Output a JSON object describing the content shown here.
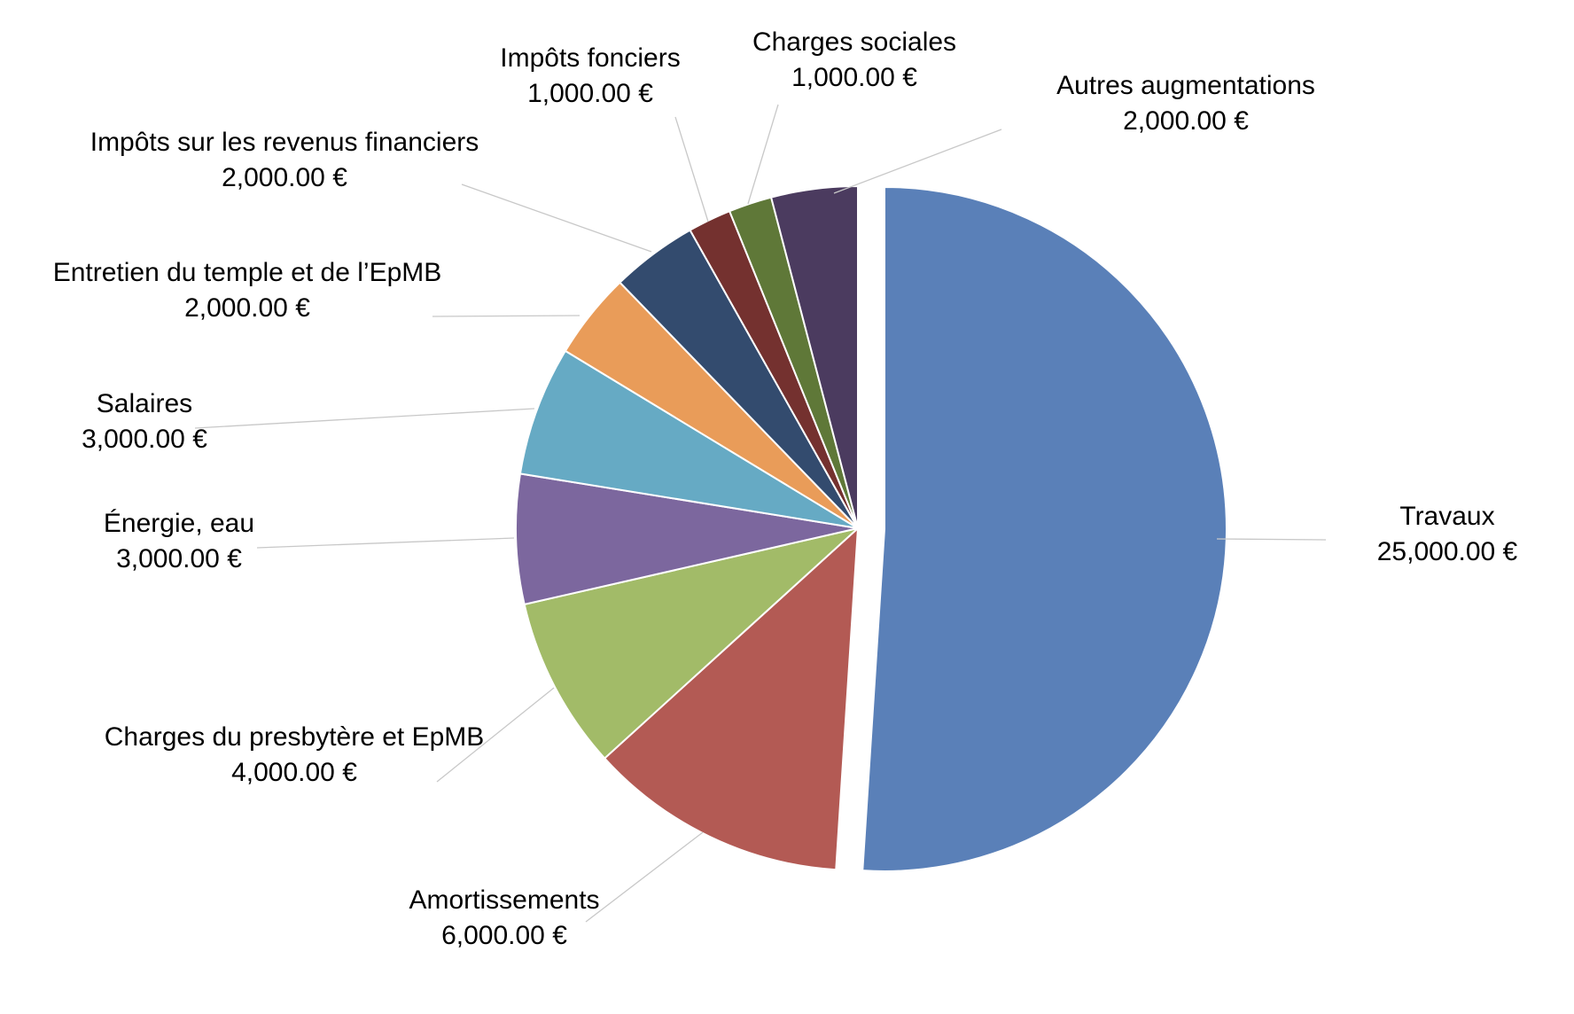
{
  "chart_data": {
    "type": "pie",
    "title": "",
    "labels_shown": "category name and value, outside with leader lines",
    "exploded_slice": "Travaux",
    "start_angle_deg": 0,
    "direction": "clockwise",
    "slices": [
      {
        "name": "Travaux",
        "value": 25000,
        "label": "25,000.00 €",
        "color": "#5a80b8"
      },
      {
        "name": "Amortissements",
        "value": 6000,
        "label": "6,000.00 €",
        "color": "#b35a54"
      },
      {
        "name": "Charges du presbytère et EpMB",
        "value": 4000,
        "label": "4,000.00 €",
        "color": "#a2bb68"
      },
      {
        "name": "Énergie, eau",
        "value": 3000,
        "label": "3,000.00 €",
        "color": "#7c679e"
      },
      {
        "name": "Salaires",
        "value": 3000,
        "label": "3,000.00 €",
        "color": "#66aac4"
      },
      {
        "name": "Entretien du temple et de l’EpMB",
        "value": 2000,
        "label": "2,000.00 €",
        "color": "#e99c59"
      },
      {
        "name": "Impôts sur les revenus financiers",
        "value": 2000,
        "label": "2,000.00 €",
        "color": "#334b6e"
      },
      {
        "name": "Impôts fonciers",
        "value": 1000,
        "label": "1,000.00 €",
        "color": "#74312f"
      },
      {
        "name": "Charges sociales",
        "value": 1000,
        "label": "1,000.00 €",
        "color": "#5f7838"
      },
      {
        "name": "Autres augmentations",
        "value": 2000,
        "label": "2,000.00 €",
        "color": "#4b3b5f"
      }
    ]
  }
}
